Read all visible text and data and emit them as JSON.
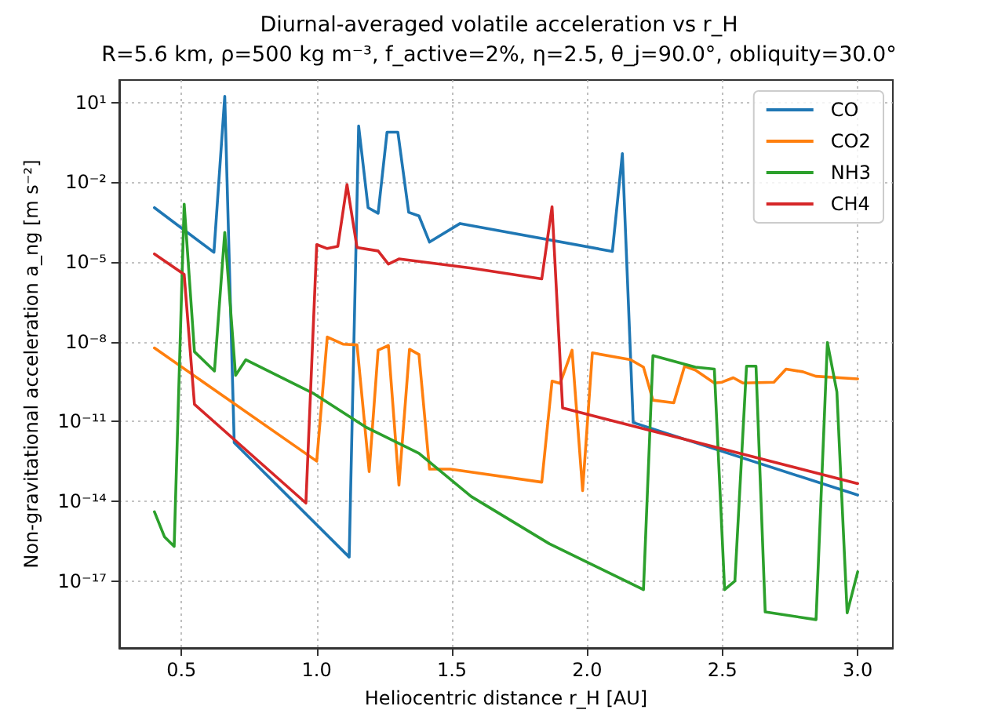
{
  "chart_data": {
    "type": "line",
    "title": "Diurnal-averaged volatile acceleration vs r_H",
    "subtitle": "R=5.6 km, ρ=500 kg m⁻³, f_active=2%, η=2.5, θ_j=90.0°, obliquity=30.0°",
    "xlabel": "Heliocentric distance r_H [AU]",
    "ylabel": "Non-gravitational acceleration a_ng [m s⁻²]",
    "series": [
      {
        "name": "CO",
        "color": "#1f77b4",
        "x": [
          0.4,
          0.62,
          0.66,
          0.695,
          1.12,
          1.155,
          1.19,
          1.227,
          1.26,
          1.3,
          1.34,
          1.378,
          1.417,
          1.53,
          2.093,
          2.13,
          2.17,
          3.0
        ],
        "values": [
          0.0011,
          2.3e-05,
          17,
          1.6e-12,
          7.9e-17,
          1.3,
          0.0011,
          0.00068,
          0.76,
          0.76,
          0.00074,
          0.00054,
          5.6e-05,
          0.00028,
          2.5e-05,
          0.12,
          9.1e-12,
          1.7e-14
        ]
      },
      {
        "name": "CO2",
        "color": "#ff7f0e",
        "x": [
          0.4,
          1.0,
          1.039,
          1.097,
          1.149,
          1.194,
          1.227,
          1.265,
          1.304,
          1.343,
          1.378,
          1.417,
          1.494,
          1.832,
          1.87,
          1.9,
          1.944,
          1.983,
          2.019,
          2.16,
          2.208,
          2.243,
          2.32,
          2.36,
          2.4,
          2.47,
          2.498,
          2.54,
          2.575,
          2.69,
          2.735,
          2.797,
          2.845,
          3.0
        ],
        "values": [
          5.8e-09,
          3.2e-13,
          1.5e-08,
          8.1e-09,
          7.6e-09,
          1.3e-13,
          4.8e-09,
          7.2e-09,
          4e-14,
          5.2e-09,
          3.3e-09,
          1.6e-13,
          1.6e-13,
          5.2e-14,
          3.3e-10,
          2.7e-10,
          4.8e-09,
          2.5e-14,
          3.8e-09,
          2.1e-09,
          1.1e-09,
          6.3e-11,
          5e-11,
          1.2e-09,
          8.5e-10,
          2.8e-10,
          3e-10,
          4.4e-10,
          2.8e-10,
          3e-10,
          9.3e-10,
          7.4e-10,
          5e-10,
          4e-10
        ]
      },
      {
        "name": "NH3",
        "color": "#2ca02c",
        "x": [
          0.4,
          0.437,
          0.473,
          0.51,
          0.548,
          0.622,
          0.66,
          0.7,
          0.738,
          0.99,
          1.184,
          1.378,
          1.571,
          1.86,
          2.208,
          2.243,
          2.4,
          2.47,
          2.508,
          2.546,
          2.589,
          2.624,
          2.658,
          2.846,
          2.888,
          2.923,
          2.961,
          3.0
        ],
        "values": [
          4e-15,
          4.6e-16,
          2e-16,
          0.0015,
          4.2e-09,
          7.9e-10,
          0.00013,
          5.4e-10,
          2.1e-09,
          1.1e-10,
          5.9e-12,
          6.3e-13,
          1.5e-14,
          2.5e-16,
          4.7e-18,
          3e-09,
          1.1e-09,
          9.3e-10,
          4.7e-18,
          1e-17,
          1.2e-09,
          1.2e-09,
          6.8e-19,
          3.5e-19,
          9.3e-09,
          1.3e-10,
          6.3e-19,
          2.2e-17
        ]
      },
      {
        "name": "CH4",
        "color": "#d62728",
        "x": [
          0.4,
          0.51,
          0.548,
          0.96,
          1.0,
          1.039,
          1.078,
          1.112,
          1.149,
          1.227,
          1.265,
          1.304,
          1.571,
          1.832,
          1.87,
          1.909,
          3.0
        ],
        "values": [
          2e-05,
          3.4e-06,
          4.4e-11,
          8.5e-15,
          4.5e-05,
          3.2e-05,
          3.9e-05,
          0.0081,
          3.5e-05,
          2.6e-05,
          8.3e-06,
          1.3e-05,
          5.9e-06,
          2.3e-06,
          0.0012,
          3.2e-11,
          4.6e-14
        ]
      }
    ],
    "xlim": [
      0.27,
      3.13
    ],
    "xticks": [
      0.5,
      {
        "value": 1,
        "label": "1.0"
      },
      1.5,
      {
        "value": 2,
        "label": "2.0"
      },
      2.5,
      {
        "value": 3,
        "label": "3.0"
      }
    ],
    "ylim": [
      3e-20,
      70
    ],
    "yticks": [
      {
        "value": 1e-17,
        "label": "10⁻¹⁷"
      },
      {
        "value": 1e-14,
        "label": "10⁻¹⁴"
      },
      {
        "value": 1e-11,
        "label": "10⁻¹¹"
      },
      {
        "value": 1e-08,
        "label": "10⁻⁸"
      },
      {
        "value": 1e-05,
        "label": "10⁻⁵"
      },
      {
        "value": 0.01,
        "label": "10⁻²"
      },
      {
        "value": 10,
        "label": "10¹"
      }
    ],
    "log": "y",
    "grid": true,
    "legend": "top right",
    "marker": "none",
    "line_style": "solid"
  }
}
